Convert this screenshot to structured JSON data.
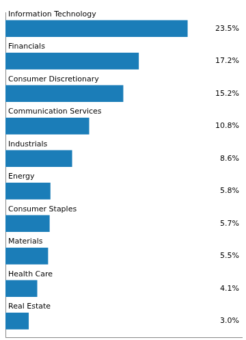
{
  "chart_data": {
    "type": "bar",
    "orientation": "horizontal",
    "categories": [
      "Information Technology",
      "Financials",
      "Consumer Discretionary",
      "Communication Services",
      "Industrials",
      "Energy",
      "Consumer Staples",
      "Materials",
      "Health Care",
      "Real Estate"
    ],
    "values": [
      23.5,
      17.2,
      15.2,
      10.8,
      8.6,
      5.8,
      5.7,
      5.5,
      4.1,
      3.0
    ],
    "value_labels": [
      "23.5%",
      "17.2%",
      "15.2%",
      "10.8%",
      "8.6%",
      "5.8%",
      "5.7%",
      "5.5%",
      "4.1%",
      "3.0%"
    ],
    "color": "#1b7db8",
    "xlim": [
      0,
      30.5
    ],
    "grid": false,
    "data_labels": true,
    "tick_labels": false
  }
}
